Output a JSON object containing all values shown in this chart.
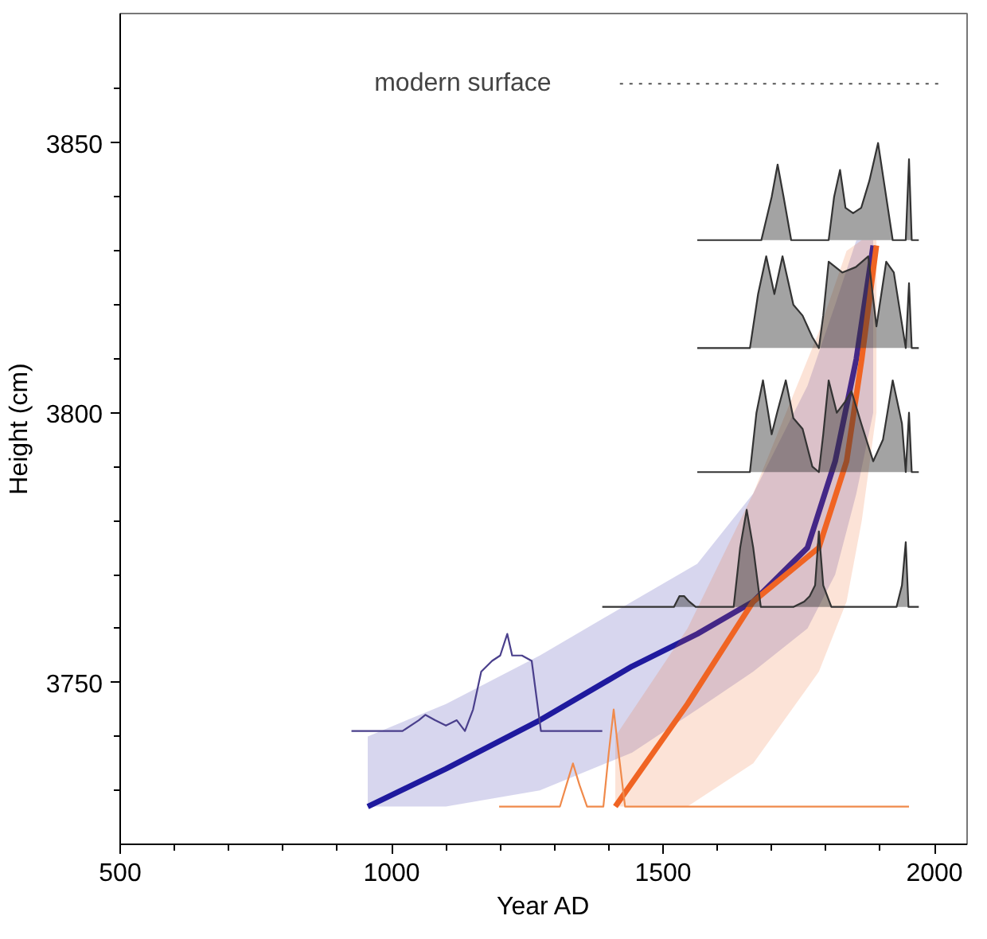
{
  "chart_data": {
    "type": "line",
    "xlabel": "Year AD",
    "ylabel": "Height (cm)",
    "xlim": [
      500,
      2060
    ],
    "ylim": [
      3720,
      3874
    ],
    "xticks": [
      500,
      {
        "value": 600,
        "label": null
      },
      {
        "value": 700,
        "label": null
      },
      {
        "value": 800,
        "label": null
      },
      {
        "value": 900,
        "label": null
      },
      1000,
      {
        "value": 1100,
        "label": null
      },
      {
        "value": 1200,
        "label": null
      },
      {
        "value": 1300,
        "label": null
      },
      {
        "value": 1400,
        "label": null
      },
      1500,
      {
        "value": 1600,
        "label": null
      },
      {
        "value": 1700,
        "label": null
      },
      {
        "value": 1800,
        "label": null
      },
      {
        "value": 1900,
        "label": null
      },
      2000
    ],
    "yticks": [
      {
        "value": 3730,
        "label": null
      },
      {
        "value": 3740,
        "label": null
      },
      3750,
      {
        "value": 3760,
        "label": null
      },
      {
        "value": 3770,
        "label": null
      },
      {
        "value": 3780,
        "label": null
      },
      {
        "value": 3790,
        "label": null
      },
      3800,
      {
        "value": 3810,
        "label": null
      },
      {
        "value": 3820,
        "label": null
      },
      {
        "value": 3830,
        "label": null
      },
      {
        "value": 3840,
        "label": null
      },
      3850,
      {
        "value": 3860,
        "label": null
      }
    ],
    "grid": false,
    "marker": "none",
    "line_style": "solid",
    "ref_lines": [
      {
        "axis": "y",
        "value": 3861,
        "label": "modern surface",
        "line_style": "dotted",
        "color": "#555555"
      }
    ],
    "series": [
      {
        "color": "#1f1a9e",
        "x": [
          956,
          1100,
          1273,
          1443,
          1563,
          1666,
          1766,
          1817,
          1856,
          1887
        ],
        "values": [
          3727,
          3734,
          3743,
          3753,
          3759,
          3765,
          3775,
          3791,
          3810,
          3831
        ],
        "lower": [
          3727,
          3727,
          3730,
          3737,
          3745,
          3752,
          3760,
          3770,
          3785,
          3800
        ],
        "upper": [
          3740,
          3746,
          3755,
          3765,
          3772,
          3785,
          3805,
          3820,
          3832,
          3832
        ]
      },
      {
        "color": "#f06423",
        "x": [
          1412,
          1545,
          1666,
          1787,
          1838,
          1866,
          1893
        ],
        "values": [
          3727,
          3746,
          3765,
          3775,
          3791,
          3810,
          3831
        ],
        "lower": [
          3727,
          3727,
          3735,
          3752,
          3765,
          3780,
          3800
        ],
        "upper": [
          3740,
          3760,
          3785,
          3815,
          3830,
          3832,
          3832
        ]
      },
      {
        "color": "#4a3f8c",
        "x": [
          926,
          1020,
          1050,
          1062,
          1080,
          1100,
          1120,
          1135,
          1150,
          1165,
          1185,
          1200,
          1213,
          1222,
          1240,
          1258,
          1275,
          1300,
          1388
        ],
        "values": [
          3741,
          3741,
          3743,
          3744,
          3743,
          3742,
          3743,
          3741,
          3745,
          3752,
          3754,
          3755,
          3759,
          3755,
          3755,
          3754,
          3741,
          3741,
          3741
        ]
      },
      {
        "color": "#f08a4b",
        "x": [
          1198,
          1310,
          1322,
          1334,
          1346,
          1360,
          1390,
          1400,
          1409,
          1418,
          1430,
          1953
        ],
        "values": [
          3727,
          3727,
          3731,
          3735,
          3731,
          3727,
          3727,
          3737,
          3745,
          3737,
          3727,
          3727
        ]
      },
      {
        "color": "#333333",
        "x": [
          1388,
          1520,
          1530,
          1539,
          1548,
          1560,
          1630,
          1642,
          1654,
          1666,
          1680,
          1740,
          1760,
          1770,
          1780,
          1787,
          1795,
          1810,
          1930,
          1940,
          1947,
          1952,
          1971
        ],
        "values": [
          3764,
          3764,
          3766,
          3766,
          3765,
          3764,
          3764,
          3775,
          3782,
          3775,
          3764,
          3764,
          3765,
          3766,
          3768,
          3778,
          3768,
          3764,
          3764,
          3768,
          3776,
          3764,
          3764
        ],
        "lower": [
          3764,
          3764,
          3764,
          3764,
          3764,
          3764,
          3764,
          3764,
          3764,
          3764,
          3764,
          3764,
          3764,
          3764,
          3764,
          3764,
          3764,
          3764,
          3764,
          3764,
          3764,
          3764,
          3764
        ],
        "upper": [
          3764,
          3764,
          3766,
          3766,
          3765,
          3764,
          3764,
          3775,
          3782,
          3775,
          3764,
          3764,
          3765,
          3766,
          3768,
          3778,
          3768,
          3764,
          3764,
          3768,
          3776,
          3764,
          3764
        ]
      },
      {
        "color": "#333333",
        "x": [
          1563,
          1660,
          1672,
          1684,
          1700,
          1710,
          1726,
          1740,
          1757,
          1775,
          1787,
          1795,
          1805,
          1820,
          1835,
          1847,
          1865,
          1887,
          1905,
          1923,
          1940,
          1947,
          1953,
          1958,
          1971
        ],
        "values": [
          3789,
          3789,
          3800,
          3806,
          3796,
          3800,
          3806,
          3799,
          3797,
          3790,
          3789,
          3796,
          3806,
          3800,
          3802,
          3804,
          3798,
          3791,
          3795,
          3806,
          3798,
          3789,
          3800,
          3789,
          3789
        ],
        "lower": [
          3789,
          3789,
          3789,
          3789,
          3789,
          3789,
          3789,
          3789,
          3789,
          3789,
          3789,
          3789,
          3789,
          3789,
          3789,
          3789,
          3789,
          3789,
          3789,
          3789,
          3789,
          3789,
          3789,
          3789,
          3789
        ],
        "upper": [
          3789,
          3789,
          3800,
          3806,
          3796,
          3800,
          3806,
          3799,
          3797,
          3790,
          3789,
          3796,
          3806,
          3800,
          3802,
          3804,
          3798,
          3791,
          3795,
          3806,
          3798,
          3789,
          3800,
          3789,
          3789
        ]
      },
      {
        "color": "#333333",
        "x": [
          1563,
          1660,
          1675,
          1690,
          1705,
          1720,
          1740,
          1757,
          1775,
          1787,
          1795,
          1805,
          1830,
          1855,
          1878,
          1893,
          1905,
          1911,
          1925,
          1947,
          1953,
          1958,
          1971
        ],
        "values": [
          3812,
          3812,
          3822,
          3829,
          3822,
          3829,
          3820,
          3818,
          3814,
          3812,
          3818,
          3828,
          3826,
          3827,
          3829,
          3816,
          3824,
          3828,
          3826,
          3812,
          3824,
          3812,
          3812
        ],
        "lower": [
          3812,
          3812,
          3812,
          3812,
          3812,
          3812,
          3812,
          3812,
          3812,
          3812,
          3812,
          3812,
          3812,
          3812,
          3812,
          3812,
          3812,
          3812,
          3812,
          3812,
          3812,
          3812,
          3812
        ],
        "upper": [
          3812,
          3812,
          3822,
          3829,
          3822,
          3829,
          3820,
          3818,
          3814,
          3812,
          3818,
          3828,
          3826,
          3827,
          3829,
          3816,
          3824,
          3828,
          3826,
          3812,
          3824,
          3812,
          3812
        ]
      },
      {
        "color": "#333333",
        "x": [
          1563,
          1681,
          1700,
          1711,
          1722,
          1736,
          1805,
          1815,
          1826,
          1836,
          1850,
          1865,
          1880,
          1896,
          1908,
          1923,
          1947,
          1953,
          1958,
          1971
        ],
        "values": [
          3832,
          3832,
          3840,
          3846,
          3840,
          3832,
          3832,
          3840,
          3845,
          3838,
          3837,
          3838,
          3843,
          3850,
          3842,
          3832,
          3832,
          3847,
          3832,
          3832
        ],
        "lower": [
          3832,
          3832,
          3832,
          3832,
          3832,
          3832,
          3832,
          3832,
          3832,
          3832,
          3832,
          3832,
          3832,
          3832,
          3832,
          3832,
          3832,
          3832,
          3832,
          3832
        ],
        "upper": [
          3832,
          3832,
          3840,
          3846,
          3840,
          3832,
          3832,
          3840,
          3845,
          3838,
          3837,
          3838,
          3843,
          3850,
          3842,
          3832,
          3832,
          3847,
          3832,
          3832
        ]
      }
    ]
  }
}
